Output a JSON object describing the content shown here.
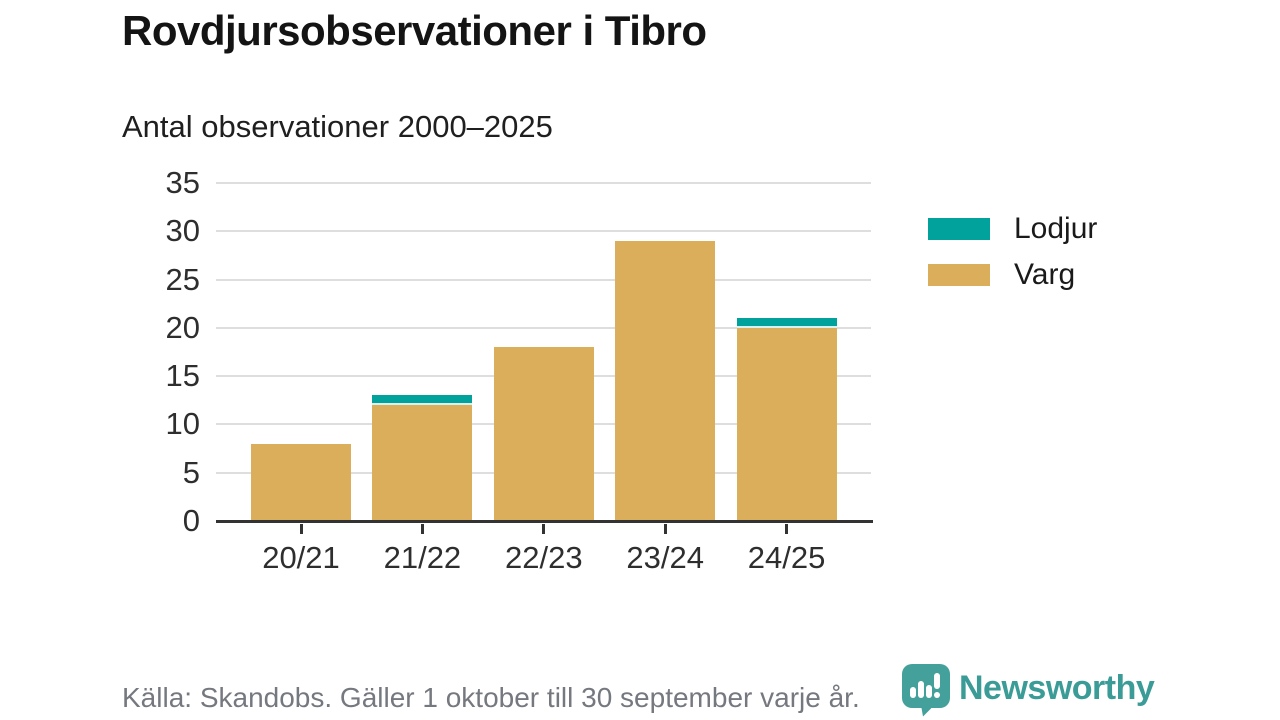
{
  "chart_data": {
    "type": "bar",
    "stacked": true,
    "title": "Rovdjursobservationer i Tibro",
    "subtitle": "Antal observationer 2000–2025",
    "categories": [
      "20/21",
      "21/22",
      "22/23",
      "23/24",
      "24/25"
    ],
    "series": [
      {
        "name": "Varg",
        "color": "#DBAE5B",
        "values": [
          8,
          12,
          18,
          29,
          20
        ]
      },
      {
        "name": "Lodjur",
        "color": "#00A29B",
        "values": [
          0,
          1,
          0,
          0,
          1
        ]
      }
    ],
    "stack_totals": [
      8,
      13,
      18,
      29,
      21
    ],
    "xlabel": "",
    "ylabel": "",
    "ylim": [
      0,
      35
    ],
    "yticks": [
      0,
      5,
      10,
      15,
      20,
      25,
      30,
      35
    ],
    "grid": true,
    "legend_position": "right"
  },
  "legend": {
    "items": [
      {
        "label": "Lodjur",
        "color": "#00A29B"
      },
      {
        "label": "Varg",
        "color": "#DBAE5B"
      }
    ]
  },
  "footer": {
    "source": "Källa: Skandobs. Gäller 1 oktober till 30 september varje år.",
    "brand": "Newsworthy"
  },
  "colors": {
    "lodjur": "#00A29B",
    "varg": "#DBAE5B",
    "axis": "#333333",
    "gridline": "#DEDEDE",
    "title_text": "#141414",
    "axis_text": "#2E2E2E",
    "footer_text": "#75787F",
    "brand_teal": "#3A9B97",
    "brand_icon_teal": "#44A09B",
    "background": "#FFFFFF"
  }
}
